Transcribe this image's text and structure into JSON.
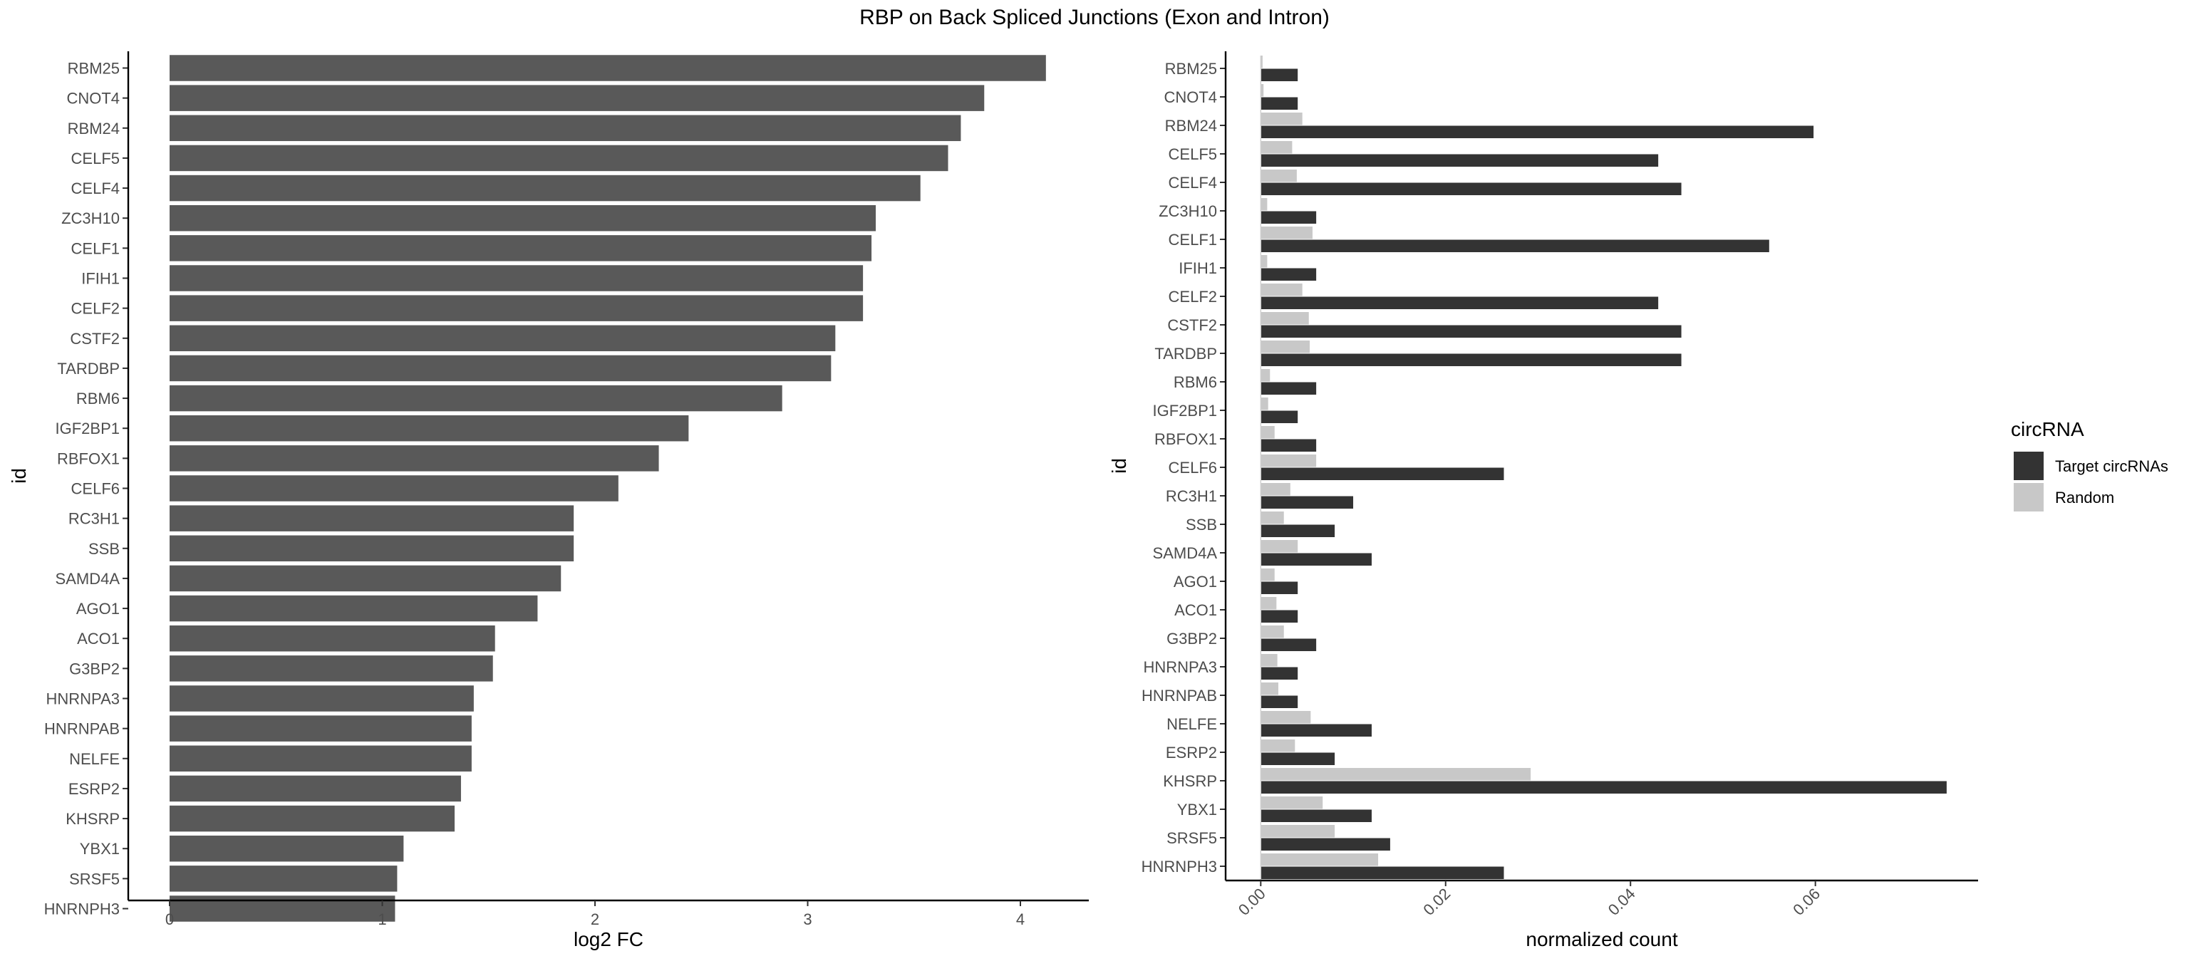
{
  "title": "RBP on Back Spliced Junctions (Exon and Intron)",
  "chart_data": [
    {
      "type": "bar",
      "orientation": "horizontal",
      "categories": [
        "RBM25",
        "CNOT4",
        "RBM24",
        "CELF5",
        "CELF4",
        "ZC3H10",
        "CELF1",
        "IFIH1",
        "CELF2",
        "CSTF2",
        "TARDBP",
        "RBM6",
        "IGF2BP1",
        "RBFOX1",
        "CELF6",
        "RC3H1",
        "SSB",
        "SAMD4A",
        "AGO1",
        "ACO1",
        "G3BP2",
        "HNRNPA3",
        "HNRNPAB",
        "NELFE",
        "ESRP2",
        "KHSRP",
        "YBX1",
        "SRSF5",
        "HNRNPH3"
      ],
      "values": [
        4.12,
        3.83,
        3.72,
        3.66,
        3.53,
        3.32,
        3.3,
        3.26,
        3.26,
        3.13,
        3.11,
        2.88,
        2.44,
        2.3,
        2.11,
        1.9,
        1.9,
        1.84,
        1.73,
        1.53,
        1.52,
        1.43,
        1.42,
        1.42,
        1.37,
        1.34,
        1.1,
        1.07,
        1.06
      ],
      "xlabel": "log2 FC",
      "ylabel": "id",
      "xlim": [
        0,
        4.3
      ],
      "xticks": [
        "0",
        "1",
        "2",
        "3",
        "4"
      ],
      "grid": false,
      "bar_color": "#595959"
    },
    {
      "type": "bar",
      "orientation": "horizontal",
      "grouped": true,
      "categories": [
        "RBM25",
        "CNOT4",
        "RBM24",
        "CELF5",
        "CELF4",
        "ZC3H10",
        "CELF1",
        "IFIH1",
        "CELF2",
        "CSTF2",
        "TARDBP",
        "RBM6",
        "IGF2BP1",
        "RBFOX1",
        "CELF6",
        "RC3H1",
        "SSB",
        "SAMD4A",
        "AGO1",
        "ACO1",
        "G3BP2",
        "HNRNPA3",
        "HNRNPAB",
        "NELFE",
        "ESRP2",
        "KHSRP",
        "YBX1",
        "SRSF5",
        "HNRNPH3"
      ],
      "series": [
        {
          "name": "Target circRNAs",
          "color": "#333333",
          "values": [
            0.004,
            0.004,
            0.0598,
            0.043,
            0.0455,
            0.006,
            0.055,
            0.006,
            0.043,
            0.0455,
            0.0455,
            0.006,
            0.004,
            0.006,
            0.0263,
            0.01,
            0.008,
            0.012,
            0.004,
            0.004,
            0.006,
            0.004,
            0.004,
            0.012,
            0.008,
            0.0742,
            0.012,
            0.014,
            0.0263
          ]
        },
        {
          "name": "Random",
          "color": "#c8c8c8",
          "values": [
            0.0002,
            0.0003,
            0.0045,
            0.0034,
            0.0039,
            0.0007,
            0.0056,
            0.0007,
            0.0045,
            0.0052,
            0.0053,
            0.001,
            0.0008,
            0.0015,
            0.006,
            0.0032,
            0.0025,
            0.004,
            0.0015,
            0.0017,
            0.0025,
            0.0018,
            0.0019,
            0.0054,
            0.0037,
            0.0292,
            0.0067,
            0.008,
            0.0127
          ]
        }
      ],
      "xlabel": "normalized count",
      "ylabel": "id",
      "xlim": [
        -0.0038,
        0.0776
      ],
      "xticks": [
        "0.00",
        "0.02",
        "0.04",
        "0.06"
      ],
      "grid": false,
      "legend_title": "circRNA",
      "legend_position": "right"
    }
  ]
}
